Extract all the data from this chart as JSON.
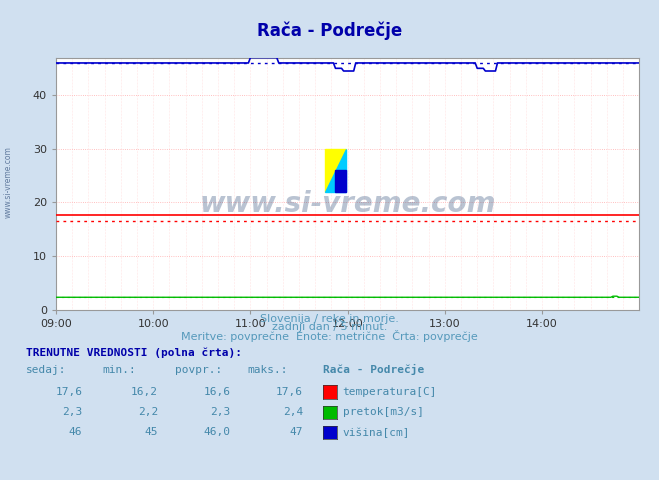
{
  "title": "Rača - Podrečje",
  "bg_color": "#d0e0f0",
  "plot_bg_color": "#ffffff",
  "xmin": 0,
  "xmax": 288,
  "ymin": 0,
  "ymax": 47.0,
  "yticks": [
    0,
    10,
    20,
    30,
    40
  ],
  "xtick_labels": [
    "09:00",
    "10:00",
    "11:00",
    "12:00",
    "13:00",
    "14:00"
  ],
  "xtick_positions": [
    0,
    48,
    96,
    144,
    192,
    240
  ],
  "temp_value": "17,6",
  "temp_min": "16,2",
  "temp_avg": 16.6,
  "temp_max": "17,6",
  "flow_value": "2,3",
  "flow_min": "2,2",
  "flow_avg": 2.3,
  "flow_max": "2,4",
  "height_value": "46",
  "height_min": "45",
  "height_avg": 46.0,
  "height_max": "47",
  "temp_color": "#ff0000",
  "flow_color": "#00bb00",
  "height_color": "#0000cc",
  "subtitle1": "Slovenija / reke in morje.",
  "subtitle2": "zadnji dan / 5 minut.",
  "subtitle3": "Meritve: povprečne  Enote: metrične  Črta: povprečje",
  "table_header": "TRENUTNE VREDNOSTI (polna črta):",
  "col_h0": "sedaj:",
  "col_h1": "min.:",
  "col_h2": "povpr.:",
  "col_h3": "maks.:",
  "col_h4": "Rača - Podrečje",
  "watermark": "www.si-vreme.com",
  "watermark_color": "#1a3a6a",
  "title_color": "#0000aa",
  "subtitle_color": "#5599bb",
  "table_color": "#0000aa",
  "label_color": "#4488aa",
  "logo_yellow": "#ffff00",
  "logo_cyan": "#00ccff",
  "logo_blue": "#0000cc"
}
